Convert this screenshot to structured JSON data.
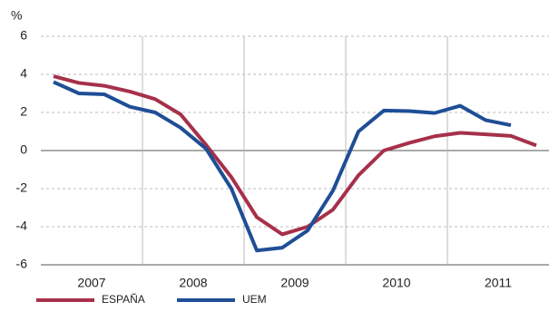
{
  "chart_data": {
    "type": "line",
    "y_unit": "%",
    "x": [
      2007.125,
      2007.375,
      2007.625,
      2007.875,
      2008.125,
      2008.375,
      2008.625,
      2008.875,
      2009.125,
      2009.375,
      2009.625,
      2009.875,
      2010.125,
      2010.375,
      2010.625,
      2010.875,
      2011.125,
      2011.375,
      2011.625,
      2011.875
    ],
    "xlim": [
      2007,
      2012
    ],
    "xticks": [
      {
        "value": 2007.5,
        "label": "2007"
      },
      {
        "value": 2008.5,
        "label": "2008"
      },
      {
        "value": 2009.5,
        "label": "2009"
      },
      {
        "value": 2010.5,
        "label": "2010"
      },
      {
        "value": 2011.5,
        "label": "2011"
      }
    ],
    "xgrid": [
      2008,
      2009,
      2010,
      2011
    ],
    "ylim": [
      -6,
      6
    ],
    "yticks": [
      -6,
      -4,
      -2,
      0,
      2,
      4,
      6
    ],
    "grid": true,
    "legend": "bottom",
    "series": [
      {
        "name": "ESPAÑA",
        "color": "#a6304a",
        "values": [
          3.9,
          3.55,
          3.4,
          3.1,
          2.7,
          1.9,
          0.3,
          -1.4,
          -3.5,
          -4.4,
          -4.0,
          -3.1,
          -1.3,
          0.0,
          0.4,
          0.75,
          0.93,
          0.85,
          0.77,
          0.27
        ]
      },
      {
        "name": "UEM",
        "color": "#1f4e96",
        "values": [
          3.6,
          3.0,
          2.95,
          2.3,
          2.0,
          1.2,
          0.1,
          -2.0,
          -5.25,
          -5.1,
          -4.2,
          -2.1,
          1.0,
          2.1,
          2.07,
          1.97,
          2.35,
          1.6,
          1.33,
          null
        ]
      }
    ]
  }
}
